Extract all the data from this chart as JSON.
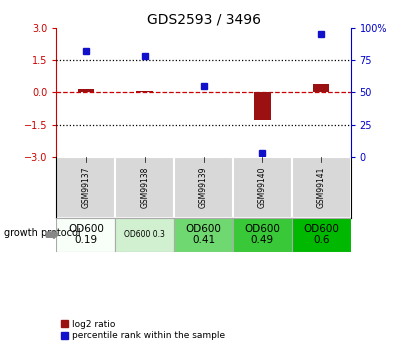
{
  "title": "GDS2593 / 3496",
  "samples": [
    "GSM99137",
    "GSM99138",
    "GSM99139",
    "GSM99140",
    "GSM99141"
  ],
  "log2_ratio": [
    0.15,
    0.08,
    0.02,
    -1.28,
    0.38
  ],
  "percentile_rank": [
    82,
    78,
    55,
    3,
    95
  ],
  "protocol_labels": [
    "OD600\n0.19",
    "OD600 0.3",
    "OD600\n0.41",
    "OD600\n0.49",
    "OD600\n0.6"
  ],
  "protocol_colors": [
    "#f0fff0",
    "#c8f0c8",
    "#80e080",
    "#40cc40",
    "#00bb00"
  ],
  "ylim_left": [
    -3,
    3
  ],
  "ylim_right": [
    0,
    100
  ],
  "red_color": "#9b1111",
  "blue_color": "#1111cc",
  "background_color": "#ffffff",
  "dashed_color": "#cc0000",
  "left_tick_color": "#cc0000",
  "right_tick_color": "#0000cc",
  "left_yticks": [
    -3,
    -1.5,
    0,
    1.5,
    3
  ],
  "right_yticks": [
    0,
    25,
    50,
    75,
    100
  ],
  "label_log2": "log2 ratio",
  "label_pct": "percentile rank within the sample",
  "growth_protocol_label": "growth protocol"
}
